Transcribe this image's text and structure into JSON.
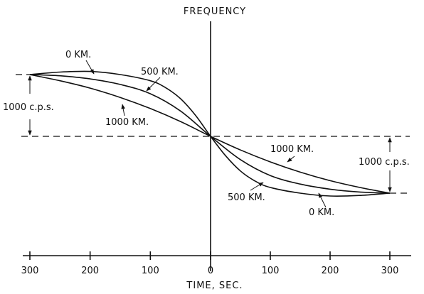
{
  "chart_data": {
    "type": "line",
    "ylabel": "FREQUENCY",
    "xlabel": "TIME, SEC.",
    "x_ticks": [
      "300",
      "200",
      "100",
      "0",
      "100",
      "200",
      "300"
    ],
    "x_tick_values": [
      -300,
      -200,
      -100,
      0,
      100,
      200,
      300
    ],
    "xlim": [
      -300,
      300
    ],
    "ylim": [
      -1000,
      1000
    ],
    "series": [
      {
        "name": "0 KM.",
        "x": [
          -300,
          -250,
          -200,
          -150,
          -100,
          -75,
          -50,
          -25,
          0,
          25,
          50,
          75,
          100,
          150,
          200,
          250,
          300
        ],
        "y": [
          1000,
          1040,
          1050,
          1000,
          900,
          790,
          610,
          340,
          0,
          -340,
          -610,
          -790,
          -900,
          -1000,
          -1050,
          -1040,
          -1000
        ]
      },
      {
        "name": "500 KM.",
        "x": [
          -300,
          -250,
          -200,
          -150,
          -100,
          -50,
          0,
          50,
          100,
          150,
          200,
          250,
          300
        ],
        "y": [
          1000,
          980,
          930,
          840,
          690,
          410,
          0,
          -410,
          -690,
          -840,
          -930,
          -980,
          -1000
        ]
      },
      {
        "name": "1000 KM.",
        "x": [
          -300,
          -250,
          -200,
          -150,
          -100,
          -50,
          0,
          50,
          100,
          150,
          200,
          250,
          300
        ],
        "y": [
          1000,
          900,
          780,
          630,
          450,
          240,
          0,
          -240,
          -450,
          -630,
          -780,
          -900,
          -1000
        ]
      }
    ],
    "annotations": [
      {
        "text": "0 KM.",
        "series": "0 KM.",
        "side": "left"
      },
      {
        "text": "500 KM.",
        "series": "500 KM.",
        "side": "left"
      },
      {
        "text": "1000 KM.",
        "series": "1000 KM.",
        "side": "left"
      },
      {
        "text": "1000 KM.",
        "series": "1000 KM.",
        "side": "right"
      },
      {
        "text": "500 KM.",
        "series": "500 KM.",
        "side": "right"
      },
      {
        "text": "0 KM.",
        "series": "0 KM.",
        "side": "right"
      },
      {
        "text": "1000 c.p.s.",
        "side": "left"
      },
      {
        "text": "1000 c.p.s.",
        "side": "right"
      }
    ]
  }
}
